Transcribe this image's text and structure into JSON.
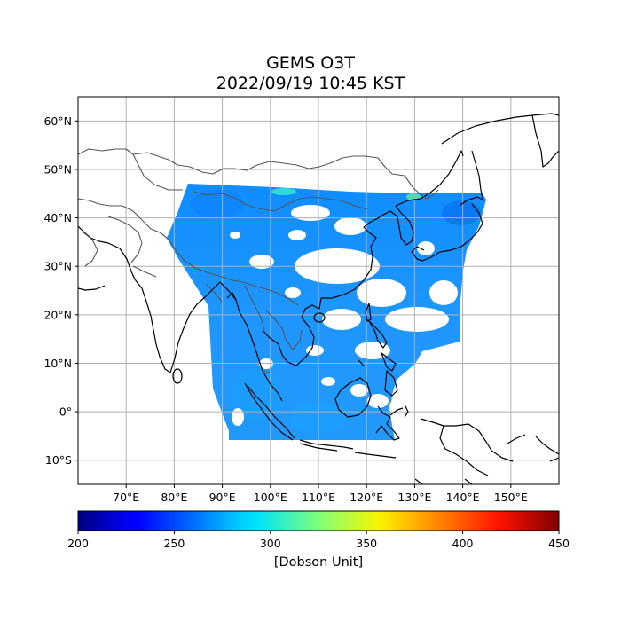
{
  "title_line1": "GEMS O3T",
  "title_line2": "2022/09/19 10:45 KST",
  "map": {
    "lon_range": [
      60,
      160
    ],
    "lat_range": [
      -15,
      65
    ],
    "lon_ticks": [
      "70°E",
      "80°E",
      "90°E",
      "100°E",
      "110°E",
      "120°E",
      "130°E",
      "140°E",
      "150°E"
    ],
    "lat_ticks": [
      "60°N",
      "50°N",
      "40°N",
      "30°N",
      "20°N",
      "10°N",
      "0°",
      "10°S"
    ],
    "gridlines": true
  },
  "colorbar": {
    "colormap": "jet",
    "min": 200,
    "max": 450,
    "ticks": [
      "200",
      "250",
      "300",
      "350",
      "400",
      "450"
    ],
    "label": "[Dobson Unit]"
  }
}
